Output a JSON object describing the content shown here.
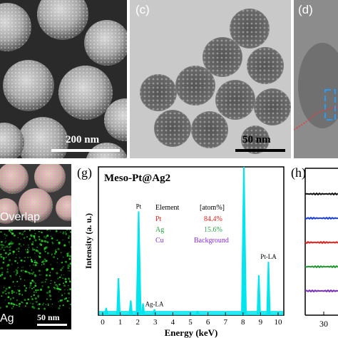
{
  "panels": {
    "b": {
      "scale_label": "200 nm"
    },
    "c": {
      "label": "(c)",
      "scale_label": "50 nm"
    },
    "d": {
      "label": "(d)"
    },
    "f_top": {
      "label": "Overlap"
    },
    "f_bottom": {
      "label": "Ag",
      "scale_label": "50 nm"
    },
    "g": {
      "label": "(g)",
      "title": "Meso-Pt@Ag2",
      "table": {
        "header": [
          "Element",
          "[atom%]"
        ],
        "rows": [
          {
            "element": "Pt",
            "value": "84.4%",
            "color": "#e8201a"
          },
          {
            "element": "Ag",
            "value": "15.6%",
            "color": "#2ea84a"
          },
          {
            "element": "Cu",
            "value": "Background",
            "color": "#8a2be2"
          }
        ]
      }
    },
    "h": {
      "label": "(h)"
    }
  },
  "chart_data": {
    "type": "line",
    "title": "Meso-Pt@Ag2",
    "xlabel": "Energy (keV)",
    "ylabel": "Intensity (a. u.)",
    "xlim": [
      0,
      10
    ],
    "xticks": [
      0,
      1,
      2,
      3,
      4,
      5,
      6,
      7,
      8,
      9,
      10
    ],
    "series_color": "#00e5ee",
    "peaks": [
      {
        "x": 0.2,
        "height": 0.05
      },
      {
        "x": 0.9,
        "height": 0.25
      },
      {
        "x": 1.6,
        "height": 0.1
      },
      {
        "x": 2.05,
        "height": 0.7,
        "label": "Pt"
      },
      {
        "x": 2.3,
        "height": 0.08
      },
      {
        "x": 2.95,
        "height": 0.04,
        "label": "Ag-LA"
      },
      {
        "x": 5.4,
        "height": 0.03
      },
      {
        "x": 8.05,
        "height": 1.0
      },
      {
        "x": 8.9,
        "height": 0.27
      },
      {
        "x": 9.45,
        "height": 0.36,
        "label": "Pt-LA"
      }
    ],
    "panel_h": {
      "xtick_labels": [
        "30"
      ],
      "series_colors": [
        "#111111",
        "#1a3ff0",
        "#e81e1e",
        "#1b9a2c",
        "#7b2cc4"
      ]
    }
  }
}
